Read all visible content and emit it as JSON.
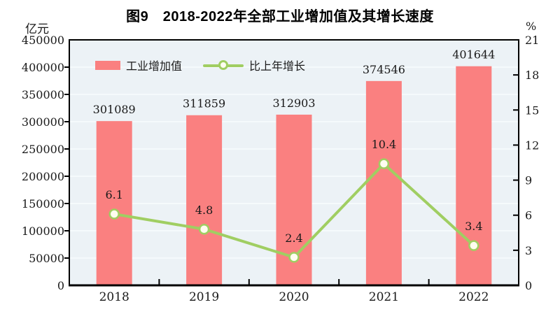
{
  "title": "图9　2018-2022年全部工业增加值及其增长速度",
  "left_axis_unit": "亿元",
  "right_axis_unit": "%",
  "legend": [
    {
      "label": "工业增加值",
      "marker": "bar-swatch",
      "color": "#FA8080"
    },
    {
      "label": "比上年增长",
      "marker": "line-swatch",
      "color": "#A0CE62"
    }
  ],
  "colors": {
    "bar": "#FA8080",
    "line": "#A0CE62",
    "marker_fill": "#FFFDF0",
    "plot_bg": "#ECF2F6",
    "gridline": "#F8FCFD",
    "axis": "#000000",
    "text": "#1A1A1A"
  },
  "chart_data": {
    "type": "bar+line",
    "categories": [
      "2018",
      "2019",
      "2020",
      "2021",
      "2022"
    ],
    "series": [
      {
        "name": "工业增加值",
        "type": "bar",
        "axis": "left",
        "unit": "亿元",
        "values": [
          301089,
          311859,
          312903,
          374546,
          401644
        ]
      },
      {
        "name": "比上年增长",
        "type": "line",
        "axis": "right",
        "unit": "%",
        "values": [
          6.1,
          4.8,
          2.4,
          10.4,
          3.4
        ]
      }
    ],
    "left_axis": {
      "unit": "亿元",
      "min": 0,
      "max": 450000,
      "step": 50000
    },
    "right_axis": {
      "unit": "%",
      "min": 0,
      "max": 21,
      "step": 3
    },
    "grid": true,
    "legend_position": "inside-top-left"
  }
}
